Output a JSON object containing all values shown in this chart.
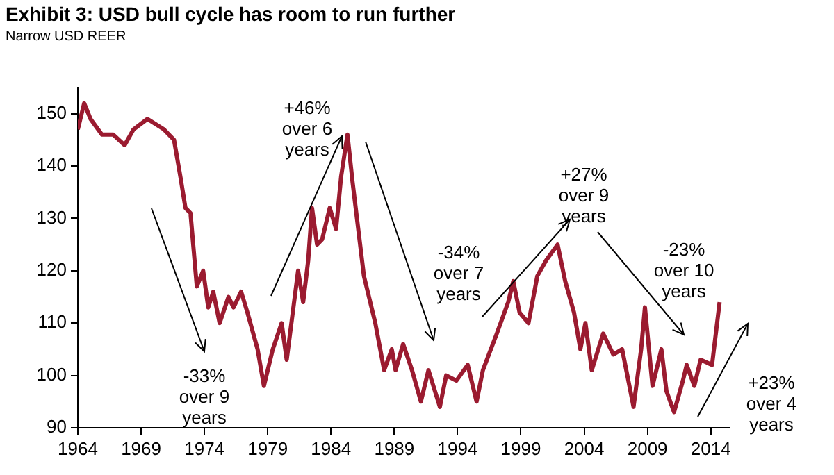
{
  "chart_data": {
    "type": "line",
    "title": "Exhibit 3: USD bull cycle has room to run further",
    "subtitle": "Narrow USD REER",
    "x": [
      1964,
      1964.5,
      1965,
      1965.9,
      1966.8,
      1967.7,
      1968.4,
      1969.5,
      1970.8,
      1971.6,
      1972.1,
      1972.5,
      1972.9,
      1973.4,
      1973.9,
      1974.3,
      1974.7,
      1975.2,
      1975.9,
      1976.3,
      1976.9,
      1977.4,
      1978.2,
      1978.7,
      1979.4,
      1980.1,
      1980.5,
      1981.4,
      1981.8,
      1982.2,
      1982.5,
      1982.9,
      1983.3,
      1983.9,
      1984.4,
      1984.8,
      1985.3,
      1985.7,
      1986.6,
      1987.5,
      1988.2,
      1988.8,
      1989.1,
      1989.7,
      1990.4,
      1991.1,
      1991.7,
      1992.6,
      1993.1,
      1993.9,
      1994.8,
      1995.5,
      1996,
      1997.1,
      1998,
      1998.4,
      1998.9,
      1999.6,
      2000.3,
      2001,
      2001.9,
      2002.5,
      2003.2,
      2003.7,
      2004.1,
      2004.6,
      2005.5,
      2006.3,
      2007,
      2007.9,
      2008.5,
      2008.8,
      2009.4,
      2010.1,
      2010.5,
      2011.1,
      2011.8,
      2012.1,
      2012.7,
      2013.2,
      2014.1,
      2014.7
    ],
    "series": [
      {
        "color": "#9b1b30",
        "values": [
          147,
          152,
          149,
          146,
          146,
          144,
          147,
          149,
          147,
          145,
          138,
          132,
          131,
          117,
          120,
          113,
          116,
          110,
          115,
          113,
          116,
          112,
          105,
          98,
          105,
          110,
          103,
          120,
          114,
          122,
          132,
          125,
          126,
          132,
          128,
          138,
          146,
          137,
          119,
          110,
          101,
          105,
          101,
          106,
          101,
          95,
          101,
          94,
          100,
          99,
          102,
          95,
          101,
          108,
          114,
          118,
          112,
          110,
          119,
          122,
          125,
          118,
          112,
          105,
          110,
          101,
          108,
          104,
          105,
          94,
          105,
          113,
          98,
          105,
          97,
          93,
          99,
          102,
          98,
          103,
          102,
          114
        ]
      }
    ],
    "xlim": [
      1964,
      2015.5
    ],
    "ylim": [
      90,
      155
    ],
    "xticks": [
      1964,
      1969,
      1974,
      1979,
      1984,
      1989,
      1994,
      1999,
      2004,
      2009,
      2014
    ],
    "yticks": [
      90,
      100,
      110,
      120,
      130,
      140,
      150
    ],
    "annotations": [
      "-33%\nover 9\nyears",
      "+46%\nover 6\nyears",
      "-34%\nover 7\nyears",
      "+27%\nover 9\nyears",
      "-23%\nover 10\nyears",
      "+23%\nover 4\nyears"
    ]
  }
}
